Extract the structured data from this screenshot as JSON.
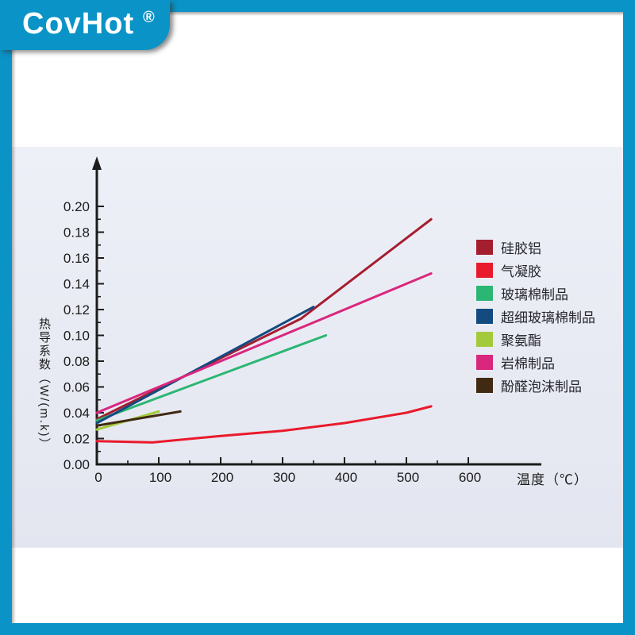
{
  "logo": {
    "brand": "CovHot",
    "registered": "®"
  },
  "colors": {
    "frame_blue": "#0a93c7",
    "panel_background": "#e8eaf3",
    "axis": "#1c1c1c"
  },
  "chart_data": {
    "type": "line",
    "title": "",
    "xlabel": "温度（℃）",
    "ylabel": "热导系数（W/(m.k)）",
    "xlim": [
      0,
      720
    ],
    "ylim": [
      0,
      0.21
    ],
    "x_ticks": [
      0,
      100,
      200,
      300,
      400,
      500,
      600
    ],
    "y_ticks": [
      "0.00",
      "0.02",
      "0.04",
      "0.06",
      "0.08",
      "0.10",
      "0.12",
      "0.14",
      "0.16",
      "0.18",
      "0.20"
    ],
    "grid": false,
    "legend_position": "right",
    "series": [
      {
        "name": "硅胶铝",
        "color": "#a51e2f",
        "points": [
          [
            0,
            0.035
          ],
          [
            330,
            0.113
          ],
          [
            540,
            0.19
          ]
        ]
      },
      {
        "name": "气凝胶",
        "color": "#e91a2b",
        "points": [
          [
            0,
            0.018
          ],
          [
            90,
            0.017
          ],
          [
            200,
            0.022
          ],
          [
            300,
            0.026
          ],
          [
            400,
            0.032
          ],
          [
            500,
            0.04
          ],
          [
            540,
            0.045
          ]
        ]
      },
      {
        "name": "玻璃棉制品",
        "color": "#2cb673",
        "points": [
          [
            0,
            0.034
          ],
          [
            370,
            0.1
          ]
        ]
      },
      {
        "name": "超细玻璃棉制品",
        "color": "#134a80",
        "points": [
          [
            0,
            0.032
          ],
          [
            350,
            0.122
          ]
        ]
      },
      {
        "name": "聚氨酯",
        "color": "#a4ca3c",
        "points": [
          [
            0,
            0.027
          ],
          [
            100,
            0.041
          ]
        ]
      },
      {
        "name": "岩棉制品",
        "color": "#d9277d",
        "points": [
          [
            0,
            0.04
          ],
          [
            540,
            0.148
          ]
        ]
      },
      {
        "name": "酚醛泡沫制品",
        "color": "#402a12",
        "points": [
          [
            0,
            0.03
          ],
          [
            135,
            0.041
          ]
        ]
      }
    ]
  }
}
